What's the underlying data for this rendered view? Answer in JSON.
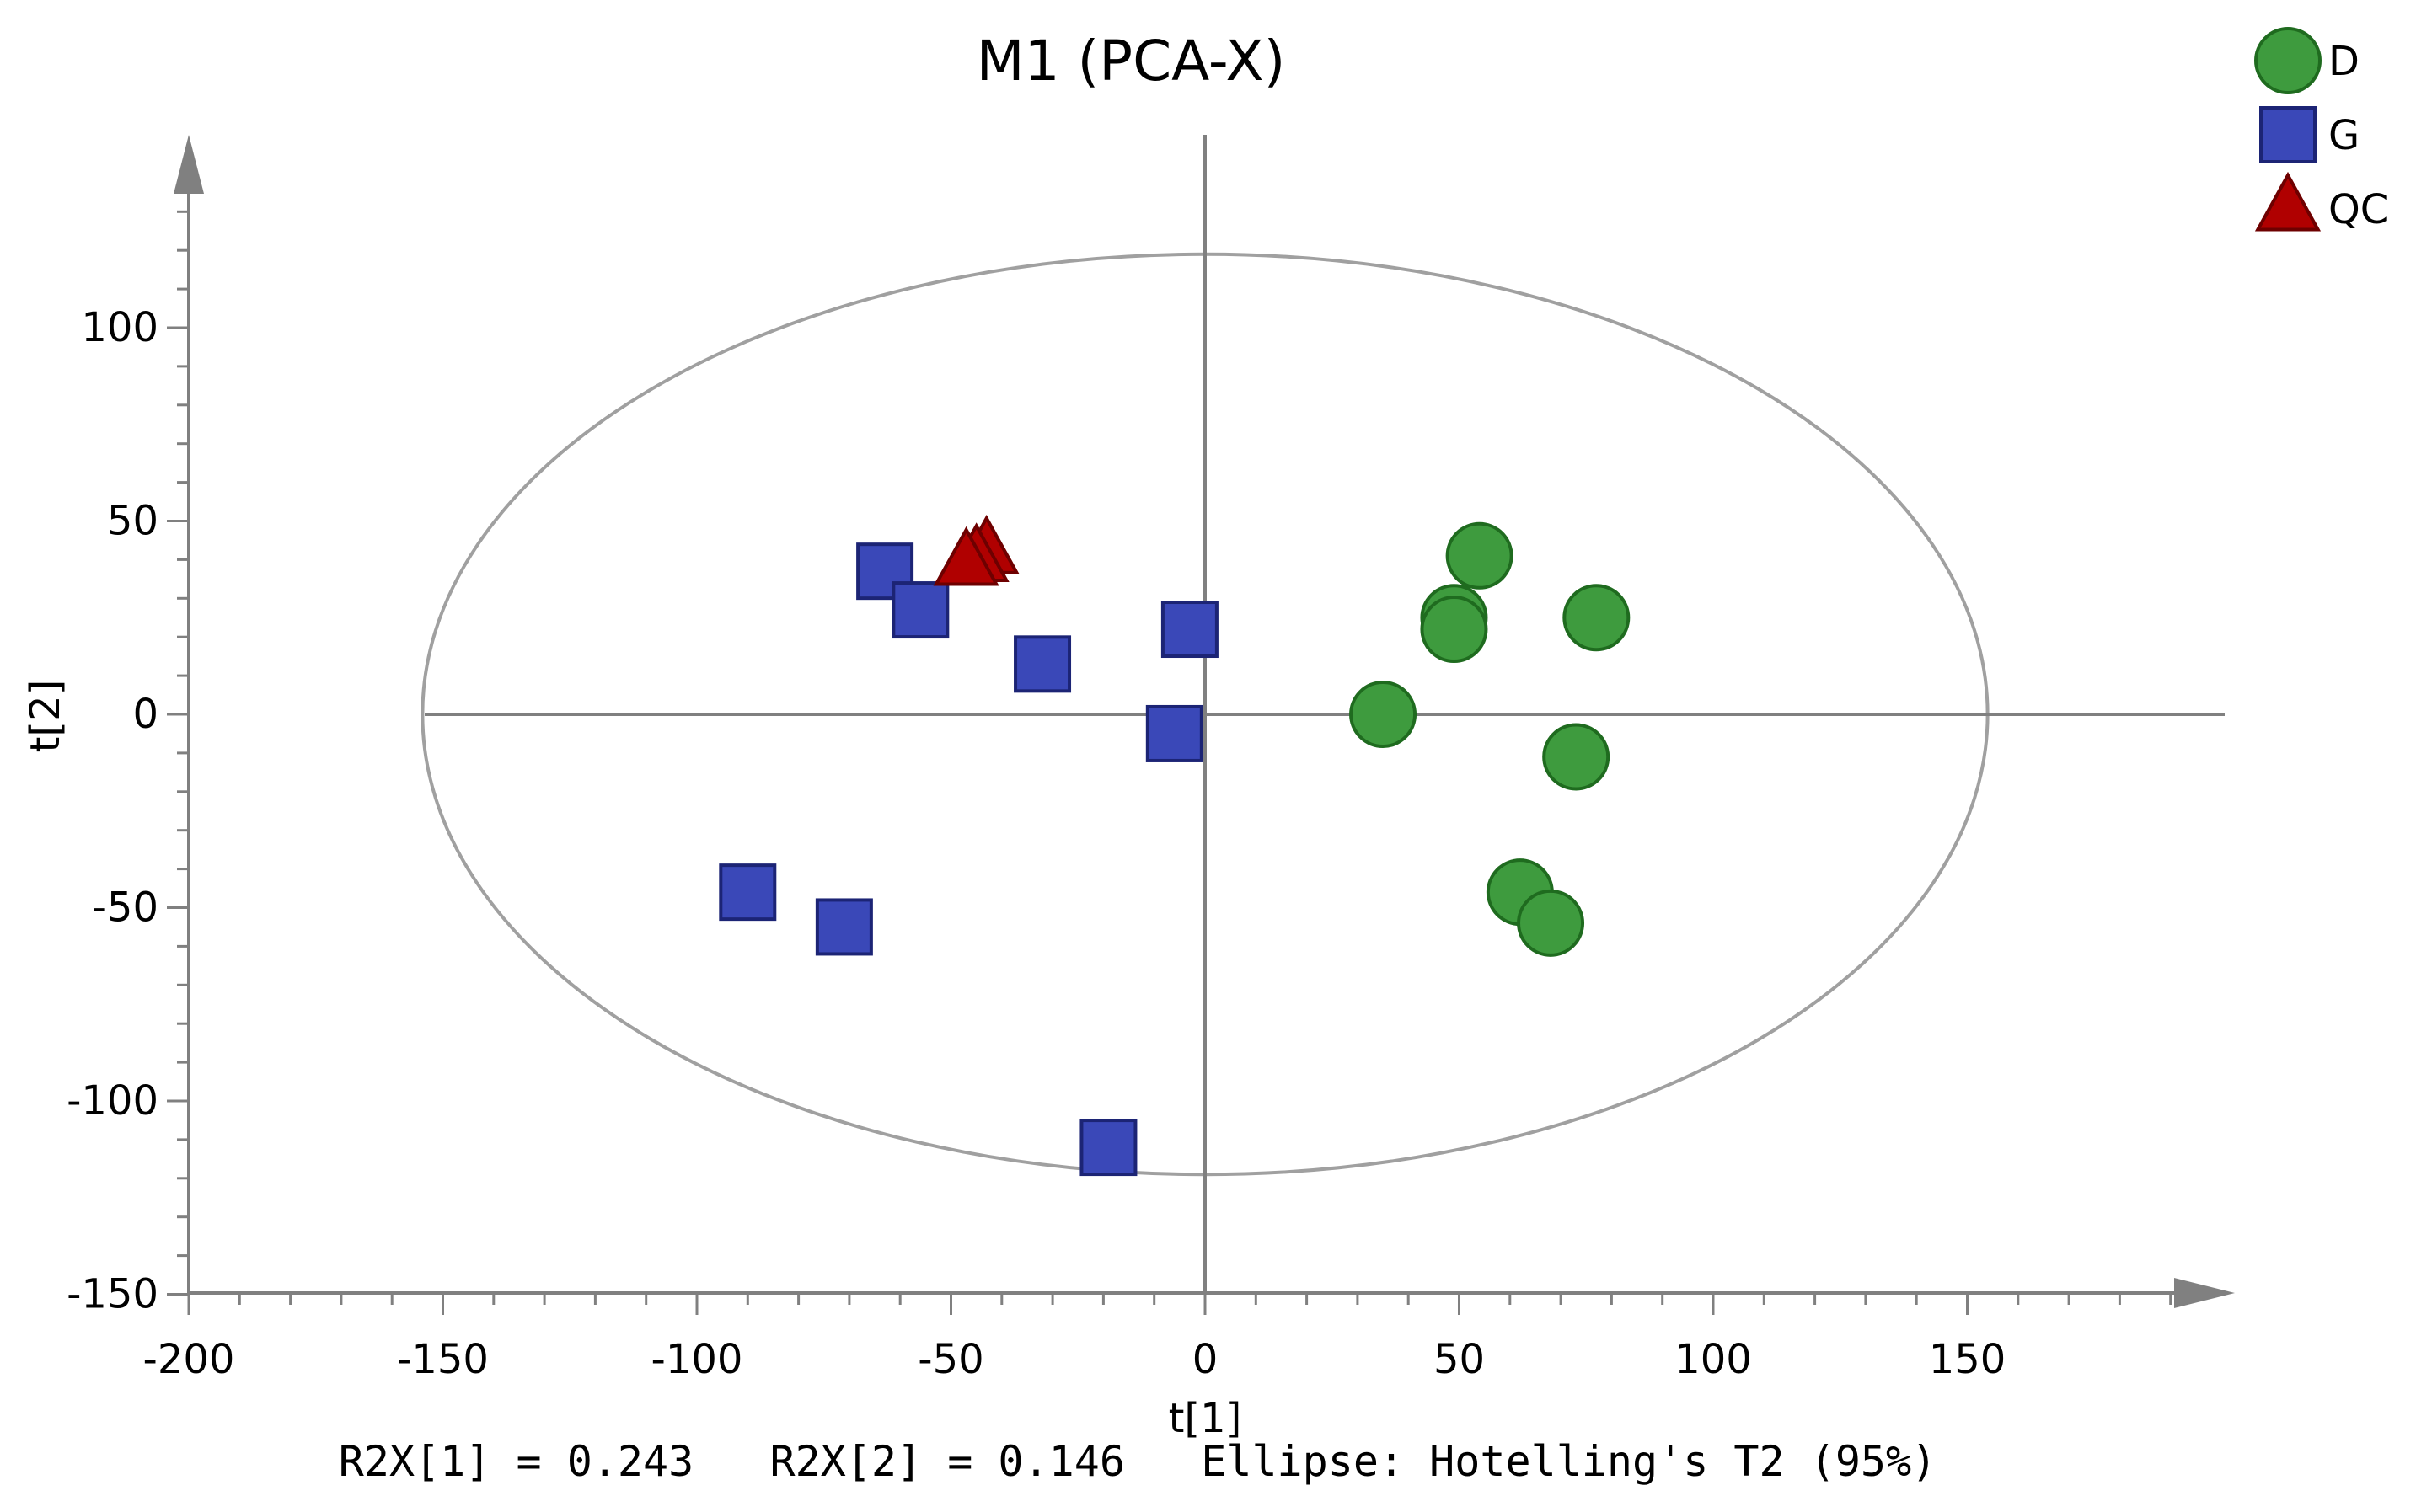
{
  "chart_data": {
    "type": "scatter",
    "title": "M1 (PCA-X)",
    "xlabel": "t[1]",
    "ylabel": "t[2]",
    "xlim": [
      -200,
      200
    ],
    "ylim": [
      -150,
      150
    ],
    "xticks": [
      -200,
      -150,
      -100,
      -50,
      0,
      50,
      100,
      150
    ],
    "yticks": [
      -150,
      -100,
      -50,
      0,
      50,
      100
    ],
    "grid": false,
    "legend_position": "top-right",
    "ellipse": {
      "label": "Ellipse: Hotelling's T2 (95%)",
      "rx": 154,
      "ry": 119
    },
    "footer": "R2X[1] = 0.243   R2X[2] = 0.146   Ellipse: Hotelling's T2 (95%)",
    "series": [
      {
        "name": "D",
        "marker": "circle",
        "color": "#3E9B3E",
        "stroke": "#1F6B1F",
        "points": [
          {
            "x": 54,
            "y": 41
          },
          {
            "x": 49,
            "y": 25
          },
          {
            "x": 49,
            "y": 22
          },
          {
            "x": 77,
            "y": 25
          },
          {
            "x": 35,
            "y": 0
          },
          {
            "x": 73,
            "y": -11
          },
          {
            "x": 62,
            "y": -46
          },
          {
            "x": 68,
            "y": -54
          }
        ]
      },
      {
        "name": "G",
        "marker": "square",
        "color": "#3A48B8",
        "stroke": "#1C2475",
        "points": [
          {
            "x": -63,
            "y": 37
          },
          {
            "x": -56,
            "y": 27
          },
          {
            "x": -32,
            "y": 13
          },
          {
            "x": -3,
            "y": 22
          },
          {
            "x": -6,
            "y": -5
          },
          {
            "x": -90,
            "y": -46
          },
          {
            "x": -71,
            "y": -55
          },
          {
            "x": -19,
            "y": -112
          }
        ]
      },
      {
        "name": "QC",
        "marker": "triangle",
        "color": "#B00000",
        "stroke": "#6E0000",
        "points": [
          {
            "x": -43,
            "y": 42
          },
          {
            "x": -45,
            "y": 40
          },
          {
            "x": -47,
            "y": 39
          }
        ]
      }
    ]
  },
  "colors": {
    "axis": "#808080",
    "axis_text": "#000000",
    "ellipse": "#A0A0A0"
  }
}
